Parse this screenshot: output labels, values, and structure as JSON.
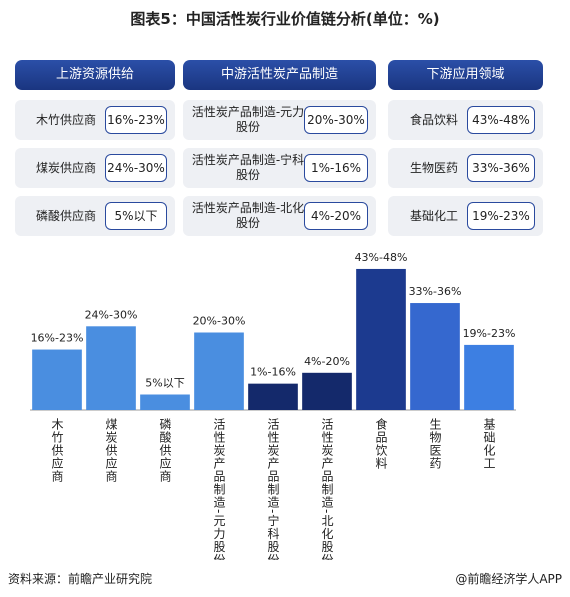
{
  "title": "图表5：中国活性炭行业价值链分析(单位：%)",
  "chain": [
    {
      "header": "上游资源供给",
      "items": [
        {
          "name": "木竹供应商",
          "range": "16%-23%"
        },
        {
          "name": "煤炭供应商",
          "range": "24%-30%"
        },
        {
          "name": "磷酸供应商",
          "range": "5%以下"
        }
      ]
    },
    {
      "header": "中游活性炭产品制造",
      "items": [
        {
          "name": "活性炭产品制造-元力股份",
          "range": "20%-30%"
        },
        {
          "name": "活性炭产品制造-宁科股份",
          "range": "1%-16%"
        },
        {
          "name": "活性炭产品制造-北化股份",
          "range": "4%-20%"
        }
      ]
    },
    {
      "header": "下游应用领域",
      "items": [
        {
          "name": "食品饮料",
          "range": "43%-48%"
        },
        {
          "name": "生物医药",
          "range": "33%-36%"
        },
        {
          "name": "基础化工",
          "range": "19%-23%"
        }
      ]
    }
  ],
  "chart_data": {
    "type": "bar",
    "categories": [
      "木竹供应商",
      "煤炭供应商",
      "磷酸供应商",
      "活性炭产品制造-元力股份",
      "活性炭产品制造-宁科股份",
      "活性炭产品制造-北化股份",
      "食品饮料",
      "生物医药",
      "基础化工"
    ],
    "values": [
      19.5,
      27,
      5,
      25,
      8.5,
      12,
      45.5,
      34.5,
      21
    ],
    "value_labels": [
      "16%-23%",
      "24%-30%",
      "5%以下",
      "20%-30%",
      "1%-16%",
      "4%-20%",
      "43%-48%",
      "33%-36%",
      "19%-23%"
    ],
    "colors": [
      "#4a8ee0",
      "#4a8ee0",
      "#4a8ee0",
      "#4a8ee0",
      "#14296b",
      "#14296b",
      "#1c3a8f",
      "#3568cf",
      "#3d7fe2"
    ],
    "ylim": [
      0,
      50
    ]
  },
  "source": "资料来源：前瞻产业研究院",
  "credit": "@前瞻经济学人APP"
}
